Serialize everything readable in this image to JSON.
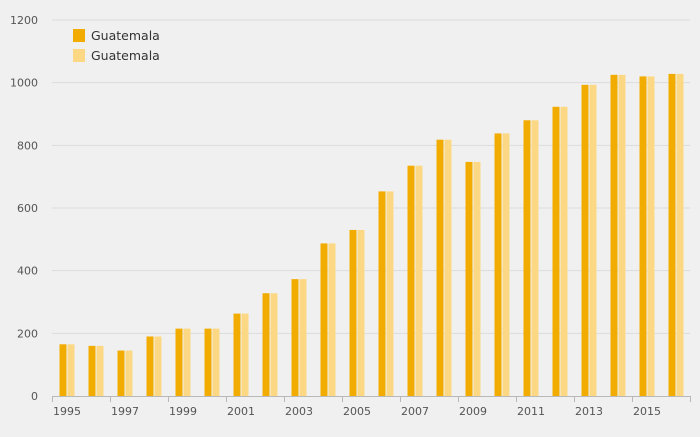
{
  "colors": {
    "background": "#f0f0f0",
    "gridline": "#dcdcdc",
    "axis": "#b8b8b8",
    "series_1": "#f2ac00",
    "series_2": "#fcd884"
  },
  "chart_data": {
    "type": "bar",
    "title": "",
    "xlabel": "",
    "ylabel": "",
    "ylim": [
      0,
      1200
    ],
    "yticks": [
      0,
      200,
      400,
      600,
      800,
      1000,
      1200
    ],
    "grid": true,
    "legend_position": "top-left",
    "categories": [
      "1995",
      "1996",
      "1997",
      "1998",
      "1999",
      "2000",
      "2001",
      "2002",
      "2003",
      "2004",
      "2005",
      "2006",
      "2007",
      "2008",
      "2009",
      "2010",
      "2011",
      "2012",
      "2013",
      "2014",
      "2015",
      "2016"
    ],
    "xtick_labels": [
      "1995",
      "1997",
      "1999",
      "2001",
      "2003",
      "2005",
      "2007",
      "2009",
      "2011",
      "2013",
      "2015"
    ],
    "series": [
      {
        "name": "Guatemala",
        "color": "#f2ac00",
        "values": [
          165,
          160,
          145,
          190,
          215,
          215,
          263,
          328,
          373,
          487,
          530,
          653,
          735,
          818,
          747,
          838,
          880,
          923,
          993,
          1025,
          1020,
          1028
        ]
      },
      {
        "name": "Guatemala",
        "color": "#fcd884",
        "values": [
          165,
          160,
          145,
          190,
          215,
          215,
          263,
          328,
          373,
          487,
          530,
          653,
          735,
          818,
          747,
          838,
          880,
          923,
          993,
          1025,
          1020,
          1028
        ]
      }
    ]
  }
}
